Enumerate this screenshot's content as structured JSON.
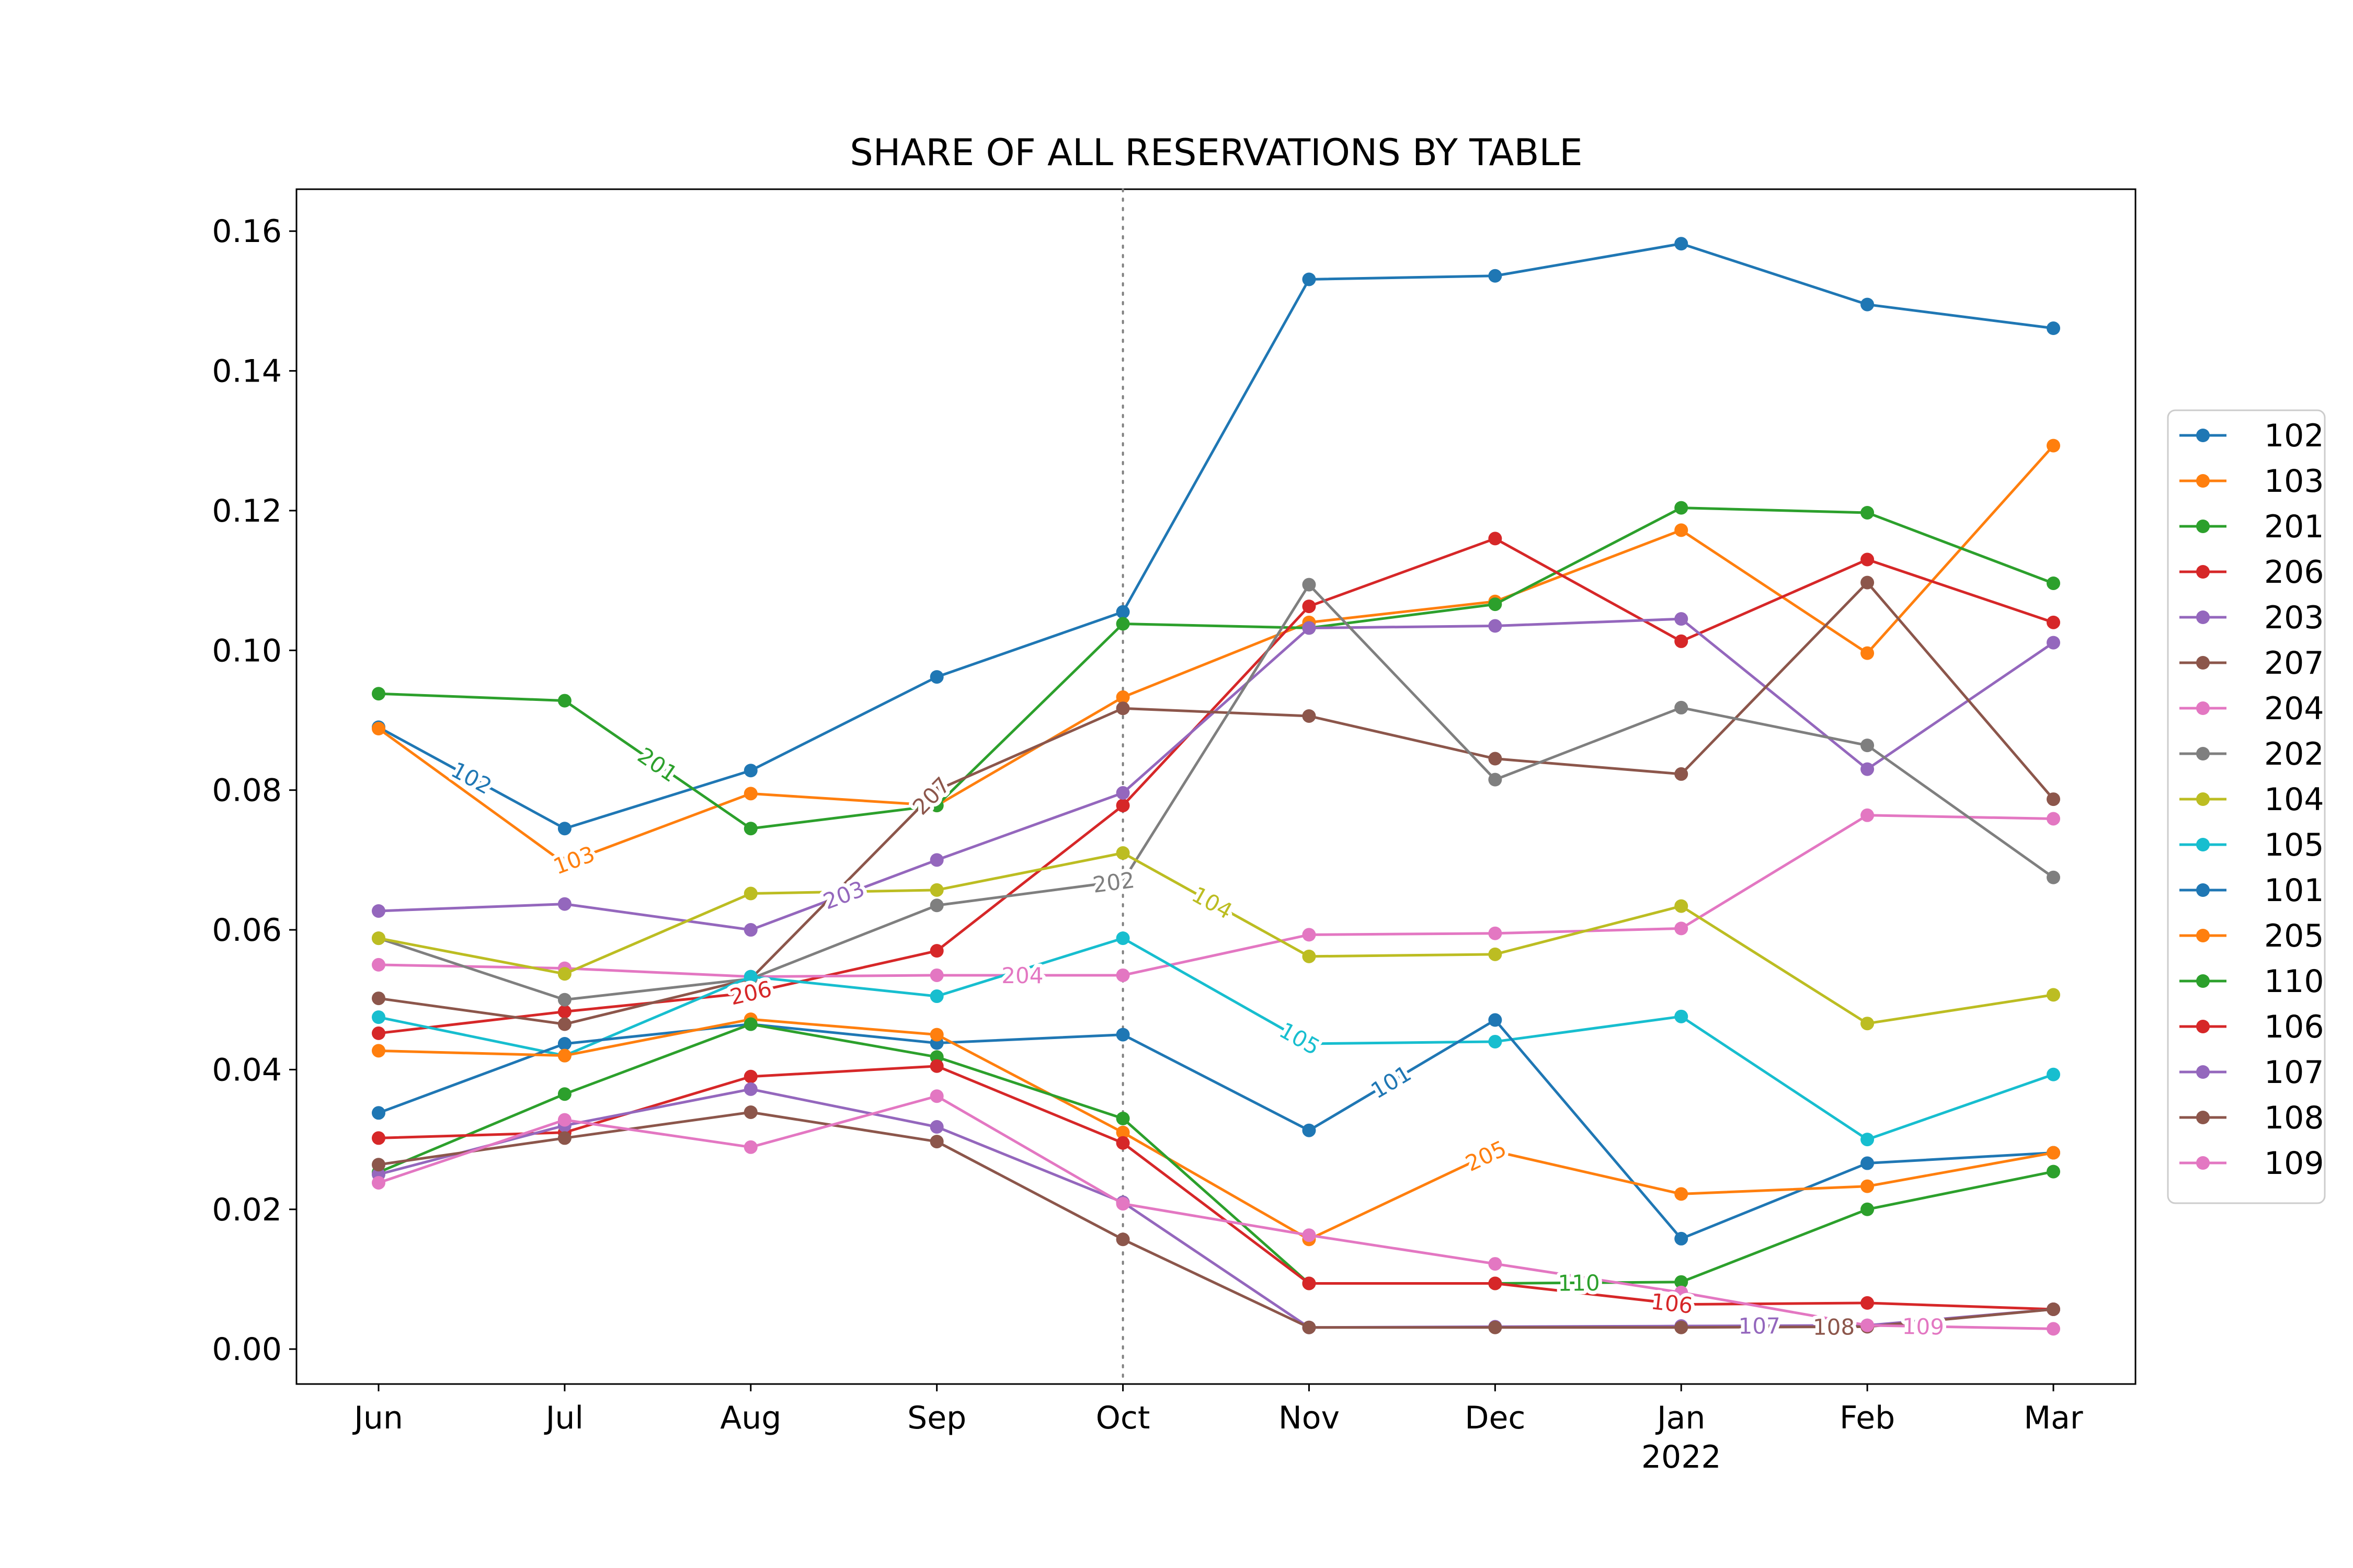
{
  "chart_data": {
    "type": "line",
    "title": "SHARE OF ALL RESERVATIONS BY TABLE",
    "xlabel": "",
    "ylabel": "",
    "categories": [
      "Jun",
      "Jul",
      "Aug",
      "Sep",
      "Oct",
      "Nov",
      "Dec",
      "Jan",
      "Feb",
      "Mar"
    ],
    "x_year_label": {
      "under": "Jan",
      "text": "2022"
    },
    "ylim": [
      -0.005,
      0.166
    ],
    "yticks": [
      0.0,
      0.02,
      0.04,
      0.06,
      0.08,
      0.1,
      0.12,
      0.14,
      0.16
    ],
    "ytick_labels": [
      "0.00",
      "0.02",
      "0.04",
      "0.06",
      "0.08",
      "0.10",
      "0.12",
      "0.14",
      "0.16"
    ],
    "grid": false,
    "legend_position": "right",
    "vertical_reference_line": {
      "at": "Oct",
      "style": "dotted",
      "color": "#808080"
    },
    "series": [
      {
        "name": "102",
        "color": "#1f77b4",
        "values": [
          0.089,
          0.0745,
          0.0828,
          0.0962,
          0.1055,
          0.1531,
          0.1536,
          0.1582,
          0.1495,
          0.1461
        ],
        "inline_label": {
          "text": "102",
          "between": [
            0,
            1
          ],
          "t": 0.5
        }
      },
      {
        "name": "103",
        "color": "#ff7f0e",
        "values": [
          0.0888,
          0.0695,
          0.0795,
          0.0778,
          0.0933,
          0.104,
          0.107,
          0.1172,
          0.0996,
          0.1293
        ],
        "inline_label": {
          "text": "103",
          "between": [
            1,
            2
          ],
          "t": 0.05
        }
      },
      {
        "name": "201",
        "color": "#2ca02c",
        "values": [
          0.0938,
          0.0928,
          0.0745,
          0.0778,
          0.1038,
          0.1032,
          0.1066,
          0.1204,
          0.1197,
          0.1096
        ],
        "inline_label": {
          "text": "201",
          "between": [
            1,
            2
          ],
          "t": 0.5
        }
      },
      {
        "name": "206",
        "color": "#d62728",
        "values": [
          0.0452,
          0.0483,
          0.051,
          0.057,
          0.0778,
          0.1063,
          0.116,
          0.1013,
          0.113,
          0.104
        ],
        "inline_label": {
          "text": "206",
          "between": [
            2,
            3
          ],
          "t": 0.0
        }
      },
      {
        "name": "203",
        "color": "#9467bd",
        "values": [
          0.0627,
          0.0637,
          0.06,
          0.07,
          0.0796,
          0.1032,
          0.1035,
          0.1045,
          0.083,
          0.1011
        ],
        "inline_label": {
          "text": "203",
          "between": [
            2,
            3
          ],
          "t": 0.5
        }
      },
      {
        "name": "207",
        "color": "#8c564b",
        "values": [
          0.0502,
          0.0465,
          0.053,
          0.08,
          0.0917,
          0.0906,
          0.0845,
          0.0823,
          0.1097,
          0.0787
        ],
        "inline_label": {
          "text": "207",
          "between": [
            2,
            3
          ],
          "t": 0.97
        }
      },
      {
        "name": "204",
        "color": "#e377c2",
        "values": [
          0.055,
          0.0545,
          0.0533,
          0.0535,
          0.0535,
          0.0593,
          0.0595,
          0.0602,
          0.0764,
          0.0759
        ],
        "inline_label": {
          "text": "204",
          "between": [
            3,
            4
          ],
          "t": 0.46
        }
      },
      {
        "name": "202",
        "color": "#7f7f7f",
        "values": [
          0.0588,
          0.05,
          0.053,
          0.0635,
          0.067,
          0.1094,
          0.0815,
          0.0918,
          0.0864,
          0.0675
        ],
        "inline_label": {
          "text": "202",
          "between": [
            3,
            4
          ],
          "t": 0.95
        }
      },
      {
        "name": "104",
        "color": "#bcbd22",
        "values": [
          0.0588,
          0.0537,
          0.0652,
          0.0657,
          0.071,
          0.0562,
          0.0565,
          0.0634,
          0.0466,
          0.0507
        ],
        "inline_label": {
          "text": "104",
          "between": [
            4,
            5
          ],
          "t": 0.48
        }
      },
      {
        "name": "105",
        "color": "#17becf",
        "values": [
          0.0475,
          0.042,
          0.0533,
          0.0505,
          0.0588,
          0.0437,
          0.044,
          0.0476,
          0.03,
          0.0393
        ],
        "inline_label": {
          "text": "105",
          "between": [
            4,
            5
          ],
          "t": 0.95
        }
      },
      {
        "name": "101",
        "color": "#1f77b4",
        "values": [
          0.0338,
          0.0437,
          0.0465,
          0.0438,
          0.045,
          0.0313,
          0.0471,
          0.0158,
          0.0266,
          0.0281
        ],
        "inline_label": {
          "text": "101",
          "between": [
            5,
            6
          ],
          "t": 0.44
        }
      },
      {
        "name": "205",
        "color": "#ff7f0e",
        "values": [
          0.0427,
          0.042,
          0.0472,
          0.045,
          0.031,
          0.0157,
          0.0283,
          0.0222,
          0.0233,
          0.0281
        ],
        "inline_label": {
          "text": "205",
          "between": [
            5,
            6
          ],
          "t": 0.95
        }
      },
      {
        "name": "110",
        "color": "#2ca02c",
        "values": [
          0.0253,
          0.0365,
          0.0465,
          0.0418,
          0.033,
          0.0094,
          0.0094,
          0.0096,
          0.02,
          0.0254
        ],
        "inline_label": {
          "text": "110",
          "between": [
            6,
            7
          ],
          "t": 0.45
        }
      },
      {
        "name": "106",
        "color": "#d62728",
        "values": [
          0.0302,
          0.031,
          0.039,
          0.0405,
          0.0295,
          0.0094,
          0.0094,
          0.0064,
          0.0066,
          0.0057
        ],
        "inline_label": {
          "text": "106",
          "between": [
            6,
            7
          ],
          "t": 0.95
        }
      },
      {
        "name": "107",
        "color": "#9467bd",
        "values": [
          0.025,
          0.032,
          0.0372,
          0.0318,
          0.021,
          0.0031,
          0.0032,
          0.0033,
          0.0034,
          0.0057
        ],
        "inline_label": {
          "text": "107",
          "between": [
            7,
            8
          ],
          "t": 0.42
        }
      },
      {
        "name": "108",
        "color": "#8c564b",
        "values": [
          0.0264,
          0.0302,
          0.0339,
          0.0297,
          0.0157,
          0.0031,
          0.0031,
          0.0031,
          0.0032,
          0.0057
        ],
        "inline_label": {
          "text": "108",
          "between": [
            7,
            8
          ],
          "t": 0.82
        }
      },
      {
        "name": "109",
        "color": "#e377c2",
        "values": [
          0.0238,
          0.0328,
          0.0289,
          0.0362,
          0.0208,
          0.0163,
          0.0122,
          0.0081,
          0.0034,
          0.0029
        ],
        "inline_label": {
          "text": "109",
          "between": [
            8,
            9
          ],
          "t": 0.3
        }
      }
    ]
  }
}
